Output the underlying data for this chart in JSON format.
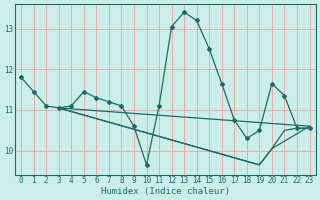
{
  "xlabel": "Humidex (Indice chaleur)",
  "background_color": "#cceee8",
  "grid_color": "#e8aaaa",
  "line_color": "#1a6b6b",
  "xlim": [
    -0.5,
    23.5
  ],
  "ylim": [
    9.4,
    13.6
  ],
  "yticks": [
    10,
    11,
    12,
    13
  ],
  "xticks": [
    0,
    1,
    2,
    3,
    4,
    5,
    6,
    7,
    8,
    9,
    10,
    11,
    12,
    13,
    14,
    15,
    16,
    17,
    18,
    19,
    20,
    21,
    22,
    23
  ],
  "lines": [
    {
      "x": [
        0,
        1,
        2,
        3,
        4,
        5,
        6,
        7,
        8,
        9,
        10,
        11,
        12,
        13,
        14,
        15,
        16,
        17,
        18,
        19,
        20,
        21,
        22,
        23
      ],
      "y": [
        11.8,
        11.45,
        11.1,
        11.05,
        11.1,
        11.45,
        11.3,
        11.2,
        11.1,
        10.6,
        9.65,
        11.1,
        13.05,
        13.4,
        13.2,
        12.5,
        11.65,
        10.75,
        10.3,
        10.5,
        11.65,
        11.35,
        10.55,
        10.55
      ],
      "has_markers": true
    },
    {
      "x": [
        3,
        23
      ],
      "y": [
        11.05,
        10.6
      ],
      "has_markers": false
    },
    {
      "x": [
        3,
        19,
        20,
        21,
        22,
        23
      ],
      "y": [
        11.05,
        9.65,
        10.05,
        10.5,
        10.55,
        10.55
      ],
      "has_markers": false
    },
    {
      "x": [
        3,
        19,
        20,
        23
      ],
      "y": [
        11.05,
        9.65,
        10.05,
        10.6
      ],
      "has_markers": false
    }
  ]
}
